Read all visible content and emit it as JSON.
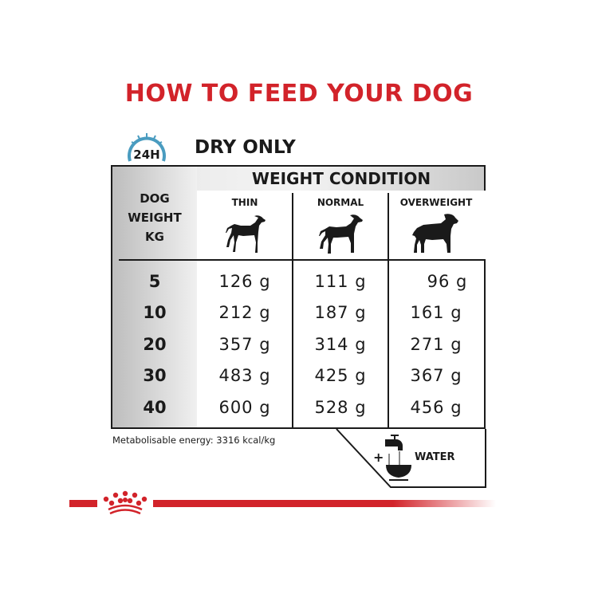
{
  "title": "HOW TO FEED YOUR DOG",
  "clock_label": "24H",
  "subtitle": "DRY ONLY",
  "table": {
    "group_header": "WEIGHT CONDITION",
    "row_header": [
      "DOG",
      "WEIGHT",
      "KG"
    ],
    "columns": [
      "THIN",
      "NORMAL",
      "OVERWEIGHT"
    ],
    "rows": [
      {
        "kg": "5",
        "values": [
          "126 g",
          "111 g",
          "96 g"
        ]
      },
      {
        "kg": "10",
        "values": [
          "212 g",
          "187 g",
          "161 g"
        ]
      },
      {
        "kg": "20",
        "values": [
          "357 g",
          "314 g",
          "271 g"
        ]
      },
      {
        "kg": "30",
        "values": [
          "483 g",
          "425 g",
          "367 g"
        ]
      },
      {
        "kg": "40",
        "values": [
          "600 g",
          "528 g",
          "456 g"
        ]
      }
    ]
  },
  "energy": "Metabolisable energy: 3316 kcal/kg",
  "water": {
    "plus": "+",
    "label": "WATER"
  },
  "colors": {
    "brand_red": "#d2232a",
    "clock_blue": "#4a9cc0",
    "ink": "#1a1a1a"
  },
  "icons": [
    "clock-icon",
    "thin-dog-icon",
    "normal-dog-icon",
    "overweight-dog-icon",
    "water-tap-icon",
    "royal-canin-crown-logo"
  ]
}
